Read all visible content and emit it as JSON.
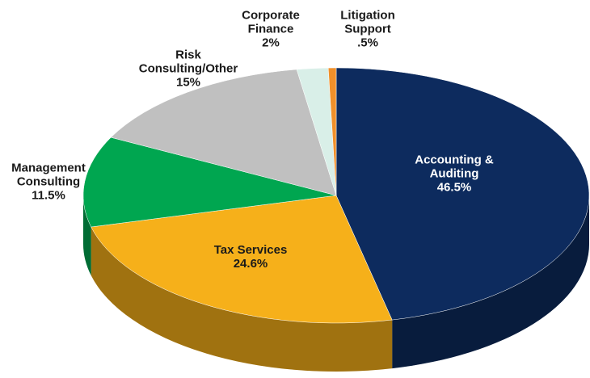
{
  "chart_data": {
    "type": "pie3d",
    "categories": [
      "Accounting & Auditing",
      "Tax Services",
      "Management Consulting",
      "Risk Consulting/Other",
      "Corporate Finance",
      "Litigation Support"
    ],
    "values": [
      46.5,
      24.6,
      11.5,
      15,
      2,
      0.5
    ],
    "value_labels": [
      "46.5%",
      "24.6%",
      "11.5%",
      "15%",
      "2%",
      ".5%"
    ],
    "colors": [
      "#0d2b5e",
      "#f6b01a",
      "#00a650",
      "#c0c0c0",
      "#d9efe8",
      "#f0902a"
    ]
  }
}
